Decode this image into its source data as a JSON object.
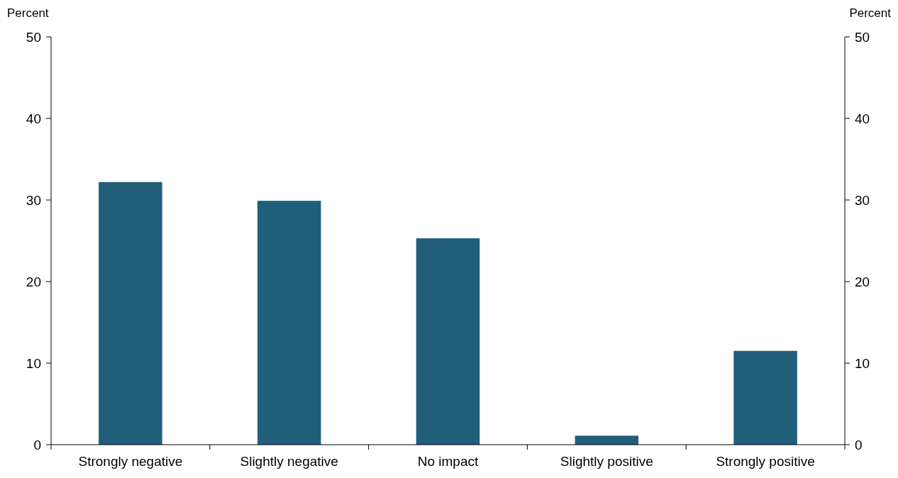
{
  "chart_data": {
    "type": "bar",
    "ylabel": "Percent",
    "y2label": "Percent",
    "categories": [
      "Strongly negative",
      "Slightly negative",
      "No impact",
      "Slightly positive",
      "Strongly positive"
    ],
    "values": [
      32.2,
      29.9,
      25.3,
      1.1,
      11.5
    ],
    "color": "#215e7a",
    "ylim": [
      0,
      50
    ],
    "yticks": [
      0,
      10,
      20,
      30,
      40,
      50
    ],
    "y2lim": [
      0,
      50
    ],
    "y2ticks": [
      0,
      10,
      20,
      30,
      40,
      50
    ],
    "grid": false
  }
}
